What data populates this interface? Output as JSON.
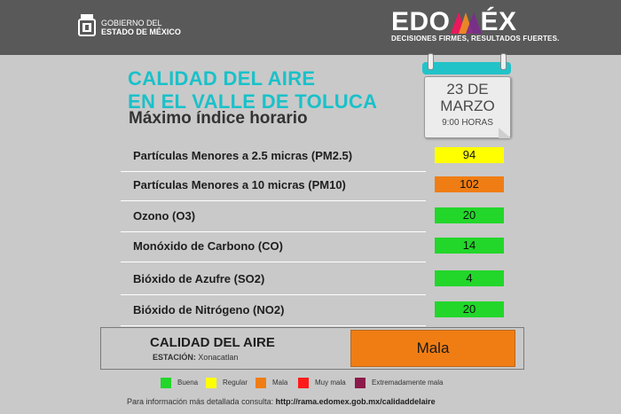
{
  "header": {
    "gov_line1": "GOBIERNO DEL",
    "gov_line2": "ESTADO DE MÉXICO",
    "brand_left": "EDO",
    "brand_right": "ÉX",
    "tagline": "DECISIONES FIRMES, RESULTADOS FUERTES."
  },
  "title": {
    "line1": "CALIDAD DEL AIRE",
    "line2": "EN EL VALLE DE TOLUCA",
    "subtitle": "Máximo índice horario"
  },
  "calendar": {
    "date_line1": "23 DE",
    "date_line2": "MARZO",
    "time": "9:00 HORAS"
  },
  "pollutants": [
    {
      "label": "Partículas Menores a 2.5 micras (PM2.5)",
      "value": "94",
      "color": "#ffff00"
    },
    {
      "label": "Partículas Menores a 10 micras (PM10)",
      "value": "102",
      "color": "#f07d13"
    },
    {
      "label": "Ozono (O3)",
      "value": "20",
      "color": "#22d62a"
    },
    {
      "label": "Monóxido de Carbono (CO)",
      "value": "14",
      "color": "#22d62a"
    },
    {
      "label": "Bióxido de Azufre (SO2)",
      "value": "4",
      "color": "#22d62a"
    },
    {
      "label": "Bióxido de Nitrógeno (NO2)",
      "value": "20",
      "color": "#22d62a"
    }
  ],
  "summary": {
    "title": "CALIDAD DEL AIRE",
    "station_label": "ESTACIÓN:",
    "station": "Xonacatlan",
    "result": "Mala",
    "result_color": "#f07d13"
  },
  "legend": [
    {
      "label": "Buena",
      "color": "#22d62a"
    },
    {
      "label": "Regular",
      "color": "#ffff00"
    },
    {
      "label": "Mala",
      "color": "#f07d13"
    },
    {
      "label": "Muy mala",
      "color": "#ff1a1a"
    },
    {
      "label": "Extremadamente mala",
      "color": "#8b1a4a"
    }
  ],
  "footer": {
    "text": "Para información más detallada consulta:",
    "link": "http://rama.edomex.gob.mx/calidaddelaire"
  }
}
